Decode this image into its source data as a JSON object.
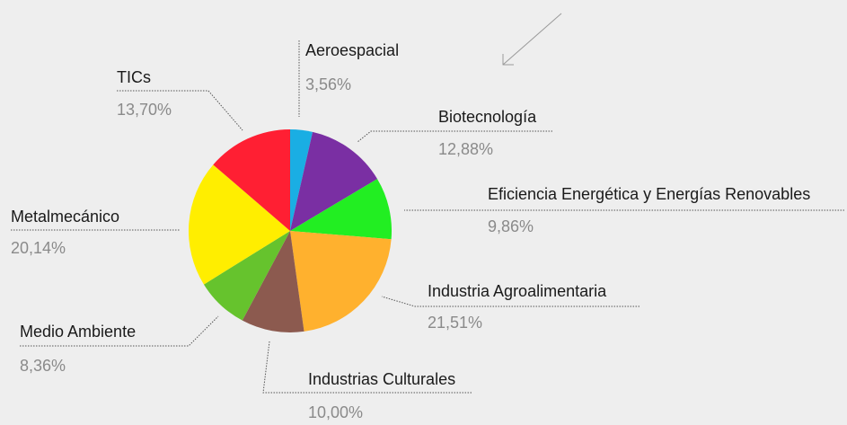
{
  "chart_data": {
    "type": "pie",
    "categories": [
      "Aeroespacial",
      "Biotecnología",
      "Eficiencia Energética y Energías Renovables",
      "Industria Agroalimentaria",
      "Industrias Culturales",
      "Medio Ambiente",
      "Metalmecánico",
      "TICs"
    ],
    "values": [
      3.56,
      12.88,
      9.86,
      21.51,
      10.0,
      8.36,
      20.14,
      13.7
    ],
    "value_labels": [
      "3,56%",
      "12,88%",
      "9,86%",
      "21,51%",
      "10,00%",
      "8,36%",
      "20,14%",
      "13,70%"
    ],
    "colors": [
      "#1aaee3",
      "#7a2fa3",
      "#22ee22",
      "#ffb12e",
      "#8c5a4f",
      "#66c32d",
      "#ffee00",
      "#ff1f33"
    ]
  }
}
